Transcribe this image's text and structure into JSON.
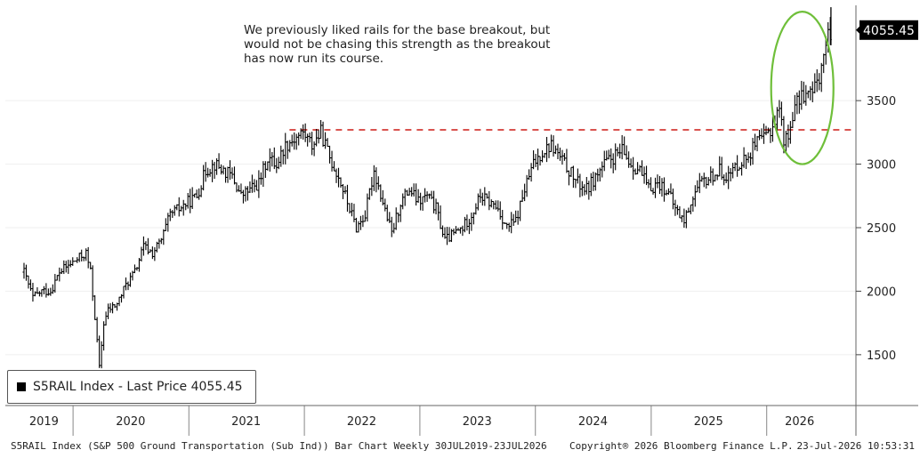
{
  "annotation": {
    "lines": [
      "We previously liked rails for the base breakout, but",
      "would not be chasing this strength as the breakout",
      "has now run its course."
    ]
  },
  "legend": {
    "label": "S5RAIL Index - Last Price 4055.45",
    "swatch_color": "#000000"
  },
  "footer": {
    "left": "S5RAIL Index (S&P 500 Ground Transportation (Sub Ind)) Bar Chart Weekly 30JUL2019-23JUL2026",
    "middle": "Copyright® 2026 Bloomberg Finance L.P.",
    "right": "23-Jul-2026 10:53:31"
  },
  "chart_data": {
    "type": "bar",
    "title": "",
    "series": [
      {
        "name": "S5RAIL Index - Last Price",
        "color": "#000000",
        "points": [
          [
            "2019-07-30",
            2150
          ],
          [
            "2019-08-27",
            1950
          ],
          [
            "2019-09-24",
            2000
          ],
          [
            "2019-10-22",
            2000
          ],
          [
            "2019-11-19",
            2150
          ],
          [
            "2019-12-17",
            2200
          ],
          [
            "2020-01-14",
            2250
          ],
          [
            "2020-02-11",
            2300
          ],
          [
            "2020-02-25",
            2150
          ],
          [
            "2020-03-10",
            1800
          ],
          [
            "2020-03-24",
            1400
          ],
          [
            "2020-04-07",
            1750
          ],
          [
            "2020-04-21",
            1850
          ],
          [
            "2020-05-19",
            1900
          ],
          [
            "2020-06-16",
            2050
          ],
          [
            "2020-07-14",
            2150
          ],
          [
            "2020-08-11",
            2350
          ],
          [
            "2020-09-08",
            2300
          ],
          [
            "2020-10-06",
            2400
          ],
          [
            "2020-11-03",
            2600
          ],
          [
            "2020-12-01",
            2650
          ],
          [
            "2020-12-29",
            2700
          ],
          [
            "2021-01-26",
            2750
          ],
          [
            "2021-02-23",
            2950
          ],
          [
            "2021-03-23",
            3000
          ],
          [
            "2021-04-20",
            2950
          ],
          [
            "2021-05-18",
            2900
          ],
          [
            "2021-06-15",
            2750
          ],
          [
            "2021-07-13",
            2800
          ],
          [
            "2021-08-10",
            2850
          ],
          [
            "2021-09-07",
            3050
          ],
          [
            "2021-10-05",
            3000
          ],
          [
            "2021-11-02",
            3150
          ],
          [
            "2021-11-30",
            3200
          ],
          [
            "2021-12-28",
            3250
          ],
          [
            "2022-01-25",
            3150
          ],
          [
            "2022-02-22",
            3250
          ],
          [
            "2022-03-22",
            3050
          ],
          [
            "2022-04-19",
            2900
          ],
          [
            "2022-05-17",
            2700
          ],
          [
            "2022-06-14",
            2500
          ],
          [
            "2022-07-12",
            2600
          ],
          [
            "2022-08-09",
            2950
          ],
          [
            "2022-09-06",
            2700
          ],
          [
            "2022-10-04",
            2450
          ],
          [
            "2022-11-01",
            2700
          ],
          [
            "2022-11-29",
            2800
          ],
          [
            "2022-12-27",
            2700
          ],
          [
            "2023-01-24",
            2750
          ],
          [
            "2023-02-21",
            2650
          ],
          [
            "2023-03-21",
            2400
          ],
          [
            "2023-04-18",
            2450
          ],
          [
            "2023-05-16",
            2500
          ],
          [
            "2023-06-13",
            2600
          ],
          [
            "2023-07-11",
            2750
          ],
          [
            "2023-08-08",
            2700
          ],
          [
            "2023-09-05",
            2650
          ],
          [
            "2023-10-03",
            2500
          ],
          [
            "2023-10-31",
            2550
          ],
          [
            "2023-11-28",
            2800
          ],
          [
            "2023-12-26",
            3000
          ],
          [
            "2024-01-23",
            3100
          ],
          [
            "2024-02-20",
            3150
          ],
          [
            "2024-03-19",
            3050
          ],
          [
            "2024-04-16",
            2950
          ],
          [
            "2024-05-14",
            2850
          ],
          [
            "2024-06-11",
            2800
          ],
          [
            "2024-07-09",
            2900
          ],
          [
            "2024-08-06",
            3000
          ],
          [
            "2024-09-03",
            3050
          ],
          [
            "2024-10-01",
            3100
          ],
          [
            "2024-10-29",
            3000
          ],
          [
            "2024-11-26",
            2950
          ],
          [
            "2024-12-24",
            2800
          ],
          [
            "2025-01-21",
            2850
          ],
          [
            "2025-02-18",
            2800
          ],
          [
            "2025-03-18",
            2650
          ],
          [
            "2025-04-15",
            2550
          ],
          [
            "2025-05-13",
            2750
          ],
          [
            "2025-06-10",
            2850
          ],
          [
            "2025-07-08",
            2900
          ],
          [
            "2025-08-05",
            2950
          ],
          [
            "2025-09-02",
            2900
          ],
          [
            "2025-09-30",
            3000
          ],
          [
            "2025-10-28",
            3050
          ],
          [
            "2025-11-25",
            3150
          ],
          [
            "2025-12-23",
            3200
          ],
          [
            "2026-01-20",
            3300
          ],
          [
            "2026-02-10",
            3450
          ],
          [
            "2026-02-24",
            3200
          ],
          [
            "2026-03-10",
            3200
          ],
          [
            "2026-03-24",
            3400
          ],
          [
            "2026-04-21",
            3550
          ],
          [
            "2026-05-19",
            3550
          ],
          [
            "2026-06-02",
            3600
          ],
          [
            "2026-06-16",
            3700
          ],
          [
            "2026-06-30",
            3850
          ],
          [
            "2026-07-14",
            4000
          ],
          [
            "2026-07-23",
            4055.45
          ]
        ]
      }
    ],
    "y_axis": {
      "ticks": [
        1500,
        2000,
        2500,
        3000,
        3500
      ],
      "range": [
        1100,
        4250
      ],
      "side": "right"
    },
    "x_axis": {
      "range": [
        "2019-06-01",
        "2026-10-10"
      ],
      "labels": [
        {
          "text": "2019",
          "date": "2019-10-01"
        },
        {
          "text": "2020",
          "date": "2020-07-01"
        },
        {
          "text": "2021",
          "date": "2021-07-01"
        },
        {
          "text": "2022",
          "date": "2022-07-01"
        },
        {
          "text": "2023",
          "date": "2023-07-01"
        },
        {
          "text": "2024",
          "date": "2024-07-01"
        },
        {
          "text": "2025",
          "date": "2025-07-01"
        },
        {
          "text": "2026",
          "date": "2026-04-15"
        }
      ],
      "dividers": [
        "2020-01-01",
        "2021-01-01",
        "2022-01-01",
        "2023-01-01",
        "2024-01-01",
        "2025-01-01",
        "2026-01-01"
      ]
    },
    "resistance_line": {
      "value": 3270,
      "start": "2021-11-15",
      "end": "2026-10-10",
      "color": "#d9534f",
      "style": "dashed"
    },
    "highlight_ellipse": {
      "start": "2026-01-15",
      "end": "2026-07-31",
      "low": 3000,
      "high": 4200,
      "color": "#6fbf3a"
    },
    "last_price": {
      "value": 4055.45,
      "label": "4055.45"
    }
  }
}
